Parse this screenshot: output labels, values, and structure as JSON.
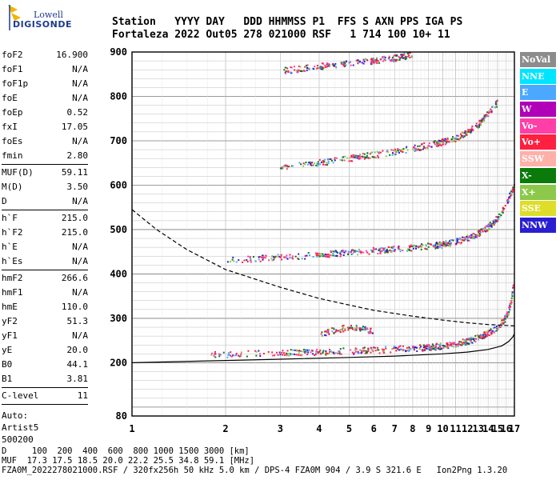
{
  "logo": {
    "line1": "Lowell",
    "line2": "DIGISONDE"
  },
  "header": {
    "labels": "Station   YYYY DAY   DDD HHMMSS P1  FFS S AXN PPS IGA PS",
    "values": "Fortaleza 2022 Out05 278 021000 RSF   1 714 100 10+ 11"
  },
  "params": {
    "group1": [
      {
        "k": "foF2",
        "v": "16.900"
      },
      {
        "k": "foF1",
        "v": "N/A"
      },
      {
        "k": "foF1p",
        "v": "N/A"
      },
      {
        "k": "foE",
        "v": "N/A"
      },
      {
        "k": "foEp",
        "v": "0.52"
      },
      {
        "k": "fxI",
        "v": "17.05"
      },
      {
        "k": "foEs",
        "v": "N/A"
      },
      {
        "k": "fmin",
        "v": "2.80"
      }
    ],
    "group2": [
      {
        "k": "MUF(D)",
        "v": "59.11"
      },
      {
        "k": "M(D)",
        "v": "3.50"
      },
      {
        "k": "D",
        "v": "N/A"
      }
    ],
    "group3": [
      {
        "k": "h`F",
        "v": "215.0"
      },
      {
        "k": "h`F2",
        "v": "215.0"
      },
      {
        "k": "h`E",
        "v": "N/A"
      },
      {
        "k": "h`Es",
        "v": "N/A"
      }
    ],
    "group4": [
      {
        "k": "hmF2",
        "v": "266.6"
      },
      {
        "k": "hmF1",
        "v": "N/A"
      },
      {
        "k": "hmE",
        "v": "110.0"
      },
      {
        "k": "yF2",
        "v": "51.3"
      },
      {
        "k": "yF1",
        "v": "N/A"
      },
      {
        "k": "yE",
        "v": "20.0"
      },
      {
        "k": "B0",
        "v": "44.1"
      },
      {
        "k": "B1",
        "v": "3.81"
      }
    ],
    "group5": [
      {
        "k": "C-level",
        "v": "11"
      }
    ],
    "auto": {
      "l1": "Auto:",
      "l2": "Artist5",
      "l3": "500200"
    }
  },
  "legend": [
    {
      "label": "NoVal",
      "color": "#8c8c8c"
    },
    {
      "label": "NNE",
      "color": "#00e5ff"
    },
    {
      "label": "E",
      "color": "#4aa8ff"
    },
    {
      "label": "W",
      "color": "#b000b8"
    },
    {
      "label": "Vo-",
      "color": "#ff3fa6"
    },
    {
      "label": "Vo+",
      "color": "#ff1f40"
    },
    {
      "label": "SSW",
      "color": "#ffb0a8"
    },
    {
      "label": "X-",
      "color": "#0a7a0a"
    },
    {
      "label": "X+",
      "color": "#8cc84a"
    },
    {
      "label": "SSE",
      "color": "#dede2a"
    },
    {
      "label": "NNW",
      "color": "#2a1fd0"
    }
  ],
  "footer": {
    "l1": "D     100  200  400  600  800 1000 1500 3000 [km]",
    "l2": "MUF  17.3 17.5 18.5 20.0 22.2 25.5 34.8 59.1 [MHz]",
    "l3": "FZA0M_2022278021000.RSF / 320fx256h 50 kHz 5.0 km / DPS-4 FZA0M 904 / 3.9 S 321.6 E   Ion2Png 1.3.20"
  },
  "chart_data": {
    "type": "scatter",
    "title": "",
    "xlabel": "",
    "ylabel": "",
    "x_scale": "log",
    "xlim": [
      1,
      17
    ],
    "ylim": [
      80,
      900
    ],
    "x_ticks": [
      1,
      2,
      3,
      4,
      5,
      6,
      7,
      8,
      9,
      10,
      11,
      12,
      13,
      14,
      15,
      16,
      17
    ],
    "y_ticks": [
      80,
      200,
      300,
      400,
      500,
      600,
      700,
      800,
      900
    ],
    "grid": true,
    "echo_traces": [
      {
        "name": "F2 trace",
        "points": [
          [
            1.8,
            218
          ],
          [
            2.5,
            220
          ],
          [
            3,
            222
          ],
          [
            4,
            224
          ],
          [
            5,
            226
          ],
          [
            6,
            228
          ],
          [
            7,
            230
          ],
          [
            8,
            232
          ],
          [
            9,
            234
          ],
          [
            10,
            238
          ],
          [
            11,
            242
          ],
          [
            12,
            248
          ],
          [
            13,
            256
          ],
          [
            14,
            266
          ],
          [
            15,
            280
          ],
          [
            15.8,
            296
          ],
          [
            16.3,
            315
          ],
          [
            16.7,
            345
          ],
          [
            16.9,
            380
          ]
        ]
      },
      {
        "name": "2nd multiple",
        "points": [
          [
            2,
            430
          ],
          [
            3,
            437
          ],
          [
            4,
            443
          ],
          [
            5,
            448
          ],
          [
            6,
            452
          ],
          [
            7,
            456
          ],
          [
            8,
            459
          ],
          [
            9,
            462
          ],
          [
            10,
            466
          ],
          [
            11,
            472
          ],
          [
            12,
            480
          ],
          [
            13,
            490
          ],
          [
            14,
            505
          ],
          [
            15,
            525
          ],
          [
            16,
            555
          ],
          [
            17,
            600
          ]
        ]
      },
      {
        "name": "3rd multiple",
        "points": [
          [
            3,
            640
          ],
          [
            4,
            650
          ],
          [
            5,
            660
          ],
          [
            6,
            668
          ],
          [
            7,
            675
          ],
          [
            8,
            682
          ],
          [
            9,
            690
          ],
          [
            10,
            697
          ],
          [
            11,
            705
          ],
          [
            12,
            718
          ],
          [
            13,
            735
          ],
          [
            14,
            760
          ],
          [
            15,
            785
          ]
        ]
      },
      {
        "name": "4th multiple",
        "points": [
          [
            3,
            857
          ],
          [
            4,
            867
          ],
          [
            5,
            875
          ],
          [
            6,
            880
          ],
          [
            7,
            886
          ],
          [
            8,
            894
          ]
        ]
      },
      {
        "name": "Es patch",
        "points": [
          [
            4,
            265
          ],
          [
            5,
            280
          ],
          [
            6,
            270
          ]
        ]
      }
    ],
    "profile_curves": [
      {
        "name": "Dashed curve",
        "style": "dashed",
        "points": [
          [
            1,
            545
          ],
          [
            1.2,
            500
          ],
          [
            1.5,
            455
          ],
          [
            2,
            410
          ],
          [
            3,
            370
          ],
          [
            4,
            345
          ],
          [
            5,
            330
          ],
          [
            6,
            318
          ],
          [
            8,
            305
          ],
          [
            10,
            296
          ],
          [
            12,
            290
          ],
          [
            14,
            286
          ],
          [
            16,
            284
          ],
          [
            17,
            283
          ]
        ]
      },
      {
        "name": "Solid curve",
        "style": "solid",
        "points": [
          [
            1,
            200
          ],
          [
            2,
            205
          ],
          [
            3,
            208
          ],
          [
            5,
            212
          ],
          [
            7,
            215
          ],
          [
            10,
            220
          ],
          [
            12,
            224
          ],
          [
            14,
            230
          ],
          [
            15.5,
            238
          ],
          [
            16.3,
            248
          ],
          [
            16.8,
            258
          ],
          [
            17,
            265
          ]
        ]
      }
    ]
  }
}
